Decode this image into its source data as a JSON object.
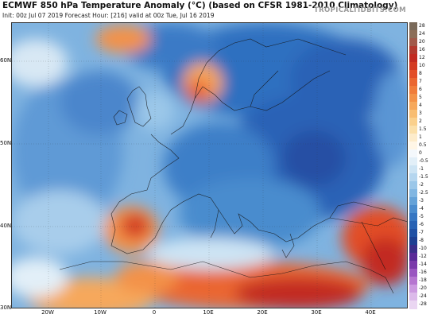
{
  "header": {
    "title": "ECMWF 850 hPa Temperature Anomaly (°C) (based on CFSR 1981-2010 Climatology)",
    "subtitle": "Init: 00z Jul 07 2019   Forecast Hour: [216]   valid at 00z Tue, Jul 16 2019",
    "brand": "TROPICALTIDBITS.COM"
  },
  "map": {
    "latitude_labels": [
      "60N",
      "50N",
      "40N",
      "30N"
    ],
    "longitude_labels": [
      "20W",
      "10W",
      "0",
      "10E",
      "20E",
      "30E",
      "40E"
    ]
  },
  "colorbar": {
    "labels": [
      "28",
      "24",
      "20",
      "16",
      "12",
      "10",
      "8",
      "7",
      "6",
      "5",
      "4",
      "3",
      "2",
      "1.5",
      "1",
      "0.5",
      "0",
      "-0.5",
      "-1",
      "-1.5",
      "-2",
      "-2.5",
      "-3",
      "-4",
      "-5",
      "-6",
      "-7",
      "-8",
      "-10",
      "-12",
      "-14",
      "-16",
      "-18",
      "-20",
      "-24",
      "-28"
    ],
    "colors": [
      "#7a6a5a",
      "#8c6e58",
      "#a15a4a",
      "#b23a2e",
      "#c22a20",
      "#d33a22",
      "#e24e28",
      "#ea6630",
      "#f07c3a",
      "#f39248",
      "#f6a85c",
      "#f8bd72",
      "#fad08c",
      "#fbe0aa",
      "#fdeccb",
      "#fff6e6",
      "#f4f8fc",
      "#e2eff8",
      "#cde4f4",
      "#b5d6ef",
      "#9bc7e9",
      "#80b6e2",
      "#64a2d8",
      "#4a8cce",
      "#3676c2",
      "#2862b4",
      "#2050a4",
      "#1e3f92",
      "#3a2e8a",
      "#5a2a98",
      "#7a3aaa",
      "#9a56c0",
      "#b676d0",
      "#cc9ae0",
      "#dcbaea",
      "#ead6f2"
    ]
  }
}
